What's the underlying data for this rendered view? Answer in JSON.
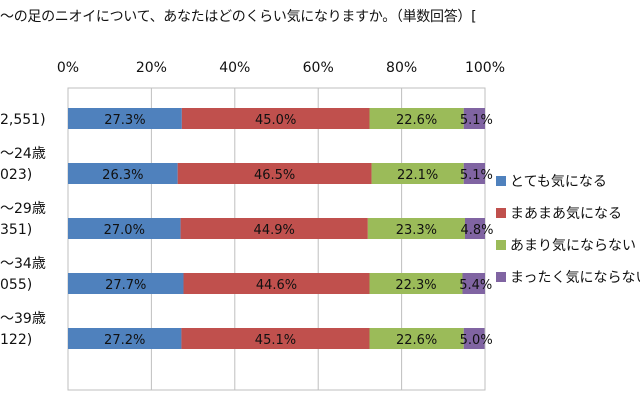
{
  "chart_data": {
    "type": "bar",
    "stacked": true,
    "orientation": "horizontal",
    "title": "〜の足のニオイについて、あなたはどのくらい気になりますか。（単数回答）[",
    "categories": [
      {
        "label1": "",
        "label2": "2,551)"
      },
      {
        "label1": "〜24歳",
        "label2": "023)"
      },
      {
        "label1": "〜29歳",
        "label2": "351)"
      },
      {
        "label1": "〜34歳",
        "label2": "055)"
      },
      {
        "label1": "〜39歳",
        "label2": "122)"
      }
    ],
    "xticks": [
      "0%",
      "20%",
      "40%",
      "60%",
      "80%",
      "100%"
    ],
    "xlim": [
      0,
      100
    ],
    "grid": true,
    "legend_position": "right",
    "series": [
      {
        "name": "とても気になる",
        "color": "#4f81bd",
        "values": [
          27.3,
          26.3,
          27.0,
          27.7,
          27.2
        ],
        "labels": [
          "27.3%",
          "26.3%",
          "27.0%",
          "27.7%",
          "27.2%"
        ]
      },
      {
        "name": "まあまあ気になる",
        "color": "#c0504d",
        "values": [
          45.0,
          46.5,
          44.9,
          44.6,
          45.1
        ],
        "labels": [
          "45.0%",
          "46.5%",
          "44.9%",
          "44.6%",
          "45.1%"
        ]
      },
      {
        "name": "あまり気にならない",
        "color": "#9bbb59",
        "values": [
          22.6,
          22.1,
          23.3,
          22.3,
          22.6
        ],
        "labels": [
          "22.6%",
          "22.1%",
          "23.3%",
          "22.3%",
          "22.6%"
        ]
      },
      {
        "name": "まったく気にならない",
        "color": "#8064a2",
        "values": [
          5.1,
          5.1,
          4.8,
          5.4,
          5.0
        ],
        "labels": [
          "5.1%",
          "5.1%",
          "4.8%",
          "5.4%",
          "5.0%"
        ]
      }
    ]
  }
}
